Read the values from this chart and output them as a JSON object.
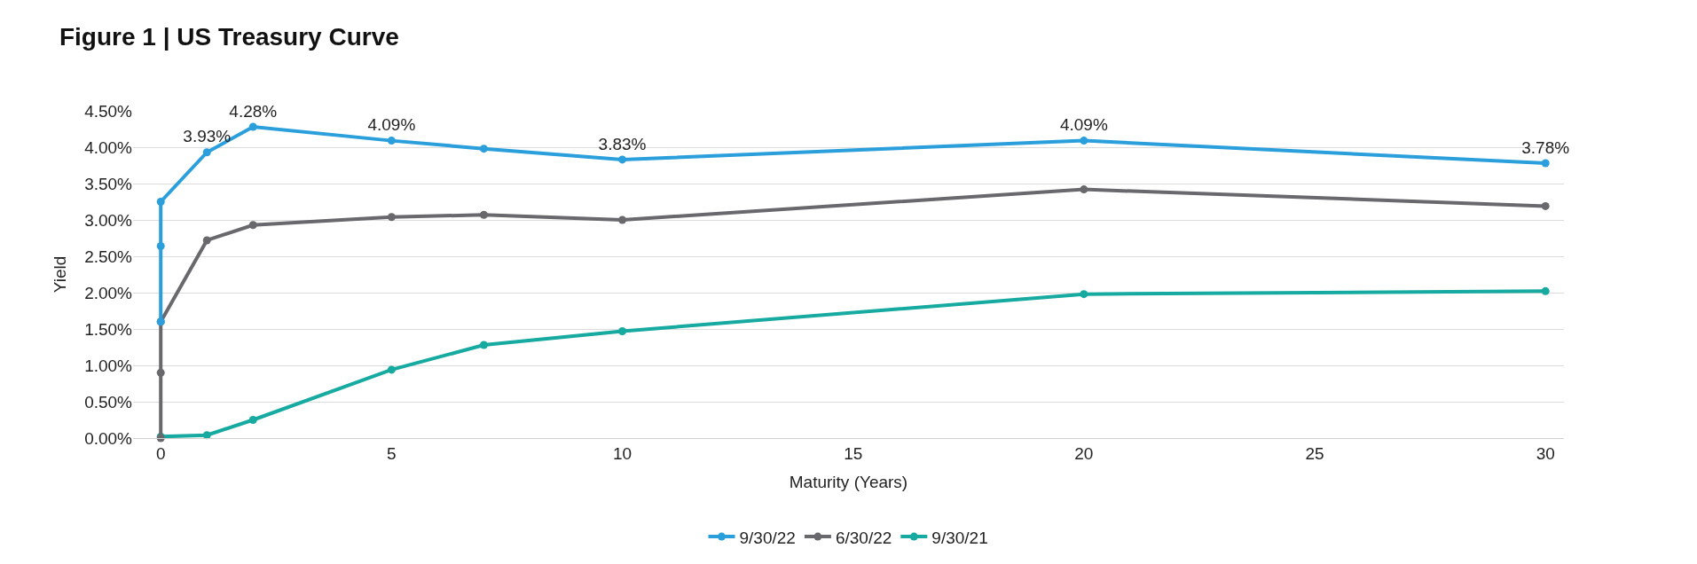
{
  "chart_data": {
    "type": "line",
    "title": "Figure 1 | US Treasury Curve",
    "xlabel": "Maturity (Years)",
    "ylabel": "Yield",
    "series": [
      {
        "name": "9/30/22",
        "color": "#2a9fdb",
        "x": [
          0,
          0,
          0,
          1,
          2,
          5,
          7,
          10,
          20,
          30
        ],
        "values": [
          1.6,
          2.64,
          3.25,
          3.93,
          4.28,
          4.09,
          3.98,
          3.83,
          4.09,
          3.78
        ],
        "value_labels": [
          null,
          null,
          null,
          "3.93%",
          "4.28%",
          "4.09%",
          null,
          "3.83%",
          "4.09%",
          "3.78%"
        ]
      },
      {
        "name": "6/30/22",
        "color": "#69686d",
        "x": [
          0,
          0,
          0,
          1,
          2,
          5,
          7,
          10,
          20,
          30
        ],
        "values": [
          0.0,
          0.9,
          1.6,
          2.72,
          2.93,
          3.04,
          3.07,
          3.0,
          3.42,
          3.19
        ]
      },
      {
        "name": "9/30/21",
        "color": "#16aaa0",
        "x": [
          0,
          1,
          2,
          5,
          7,
          10,
          20,
          30
        ],
        "values": [
          0.02,
          0.04,
          0.25,
          0.94,
          1.28,
          1.47,
          1.98,
          2.02
        ]
      }
    ],
    "xlim": [
      -0.6,
      30.4
    ],
    "xticks": [
      0,
      5,
      10,
      15,
      20,
      25,
      30
    ],
    "ylim": [
      0,
      4.5
    ],
    "yticks": [
      {
        "value": 0,
        "label": "0.00%"
      },
      {
        "value": 0.5,
        "label": "0.50%"
      },
      {
        "value": 1,
        "label": "1.00%"
      },
      {
        "value": 1.5,
        "label": "1.50%"
      },
      {
        "value": 2,
        "label": "2.00%"
      },
      {
        "value": 2.5,
        "label": "2.50%"
      },
      {
        "value": 3,
        "label": "3.00%"
      },
      {
        "value": 3.5,
        "label": "3.50%"
      },
      {
        "value": 4,
        "label": "4.00%"
      },
      {
        "value": 4.5,
        "label": "4.50%"
      }
    ],
    "grid": "y",
    "legend": "bottom",
    "marker": "circle",
    "line_style": "solid"
  }
}
